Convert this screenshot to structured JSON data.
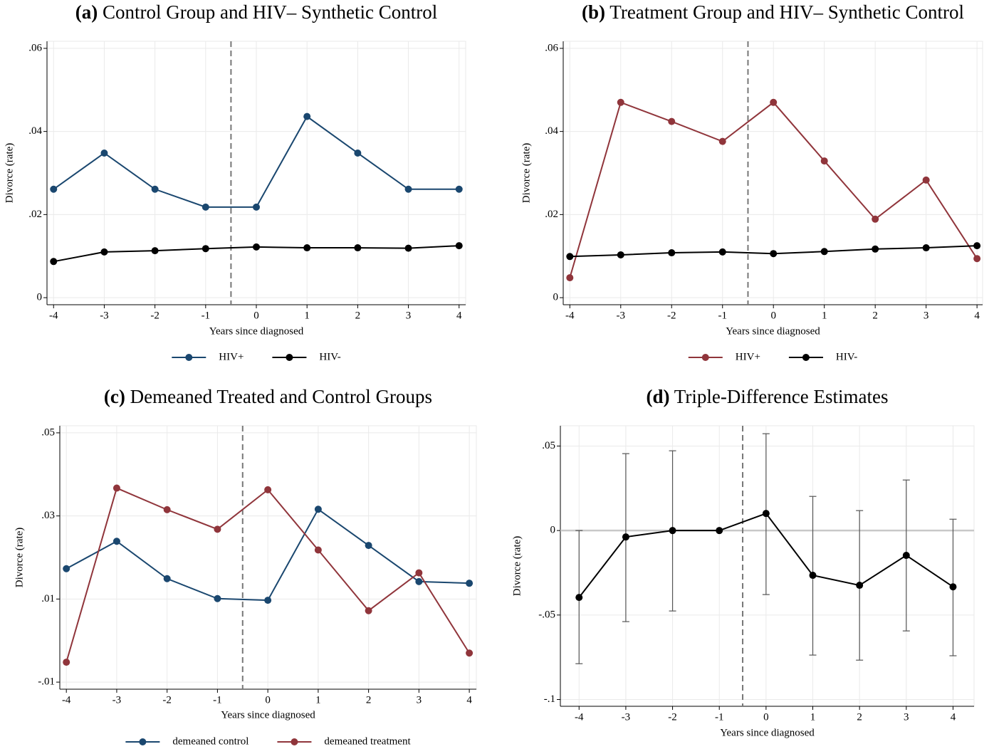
{
  "chart_data": [
    {
      "type": "line",
      "label": "(a)",
      "title": "Control Group and HIV– Synthetic Control",
      "xlabel": "Years since diagnosed",
      "ylabel": "Divorce (rate)",
      "x": [
        -4,
        -3,
        -2,
        -1,
        0,
        1,
        2,
        3,
        4
      ],
      "series": [
        {
          "name": "HIV+",
          "color": "#1a476f",
          "values": [
            0.0261,
            0.0348,
            0.0261,
            0.0218,
            0.0218,
            0.0436,
            0.0348,
            0.0261,
            0.0261
          ]
        },
        {
          "name": "HIV-",
          "color": "#000000",
          "values": [
            0.0087,
            0.011,
            0.0113,
            0.0118,
            0.0122,
            0.012,
            0.012,
            0.0119,
            0.0125
          ]
        }
      ],
      "xlim": [
        -4.13,
        4.13
      ],
      "xticks": [
        -4,
        -3,
        -2,
        -1,
        0,
        1,
        2,
        3,
        4
      ],
      "ylim": [
        -0.0017,
        0.0617
      ],
      "yticks": [
        0,
        {
          "value": 0.02,
          "label": ".02"
        },
        {
          "value": 0.04,
          "label": ".04"
        },
        {
          "value": 0.06,
          "label": ".06"
        }
      ],
      "vline": -0.5,
      "grid": true,
      "legend": "bottom"
    },
    {
      "type": "line",
      "label": "(b)",
      "title": "Treatment Group and HIV– Synthetic Control",
      "xlabel": "Years since diagnosed",
      "ylabel": "Divorce (rate)",
      "x": [
        -4,
        -3,
        -2,
        -1,
        0,
        1,
        2,
        3,
        4
      ],
      "series": [
        {
          "name": "HIV+",
          "color": "#90353b",
          "values": [
            0.0048,
            0.047,
            0.0424,
            0.0376,
            0.047,
            0.0329,
            0.0189,
            0.0283,
            0.0094
          ]
        },
        {
          "name": "HIV-",
          "color": "#000000",
          "values": [
            0.0099,
            0.0103,
            0.0108,
            0.011,
            0.0106,
            0.0111,
            0.0117,
            0.012,
            0.0125
          ]
        }
      ],
      "xlim": [
        -4.13,
        4.11
      ],
      "xticks": [
        -4,
        -3,
        -2,
        -1,
        0,
        1,
        2,
        3,
        4
      ],
      "ylim": [
        -0.0017,
        0.0617
      ],
      "yticks": [
        0,
        {
          "value": 0.02,
          "label": ".02"
        },
        {
          "value": 0.04,
          "label": ".04"
        },
        {
          "value": 0.06,
          "label": ".06"
        }
      ],
      "vline": -0.5,
      "grid": true,
      "legend": "bottom"
    },
    {
      "type": "line",
      "label": "(c)",
      "title": "Demeaned Treated and Control Groups",
      "xlabel": "Years since diagnosed",
      "ylabel": "Divorce (rate)",
      "x": [
        -4,
        -3,
        -2,
        -1,
        0,
        1,
        2,
        3,
        4
      ],
      "series": [
        {
          "name": "demeaned control",
          "color": "#1a476f",
          "values": [
            0.0173,
            0.0239,
            0.0149,
            0.0101,
            0.0097,
            0.0316,
            0.0229,
            0.0142,
            0.0138
          ]
        },
        {
          "name": "demeaned treatment",
          "color": "#90353b",
          "values": [
            -0.0052,
            0.0367,
            0.0315,
            0.0268,
            0.0363,
            0.0218,
            0.0072,
            0.0163,
            -0.003
          ]
        }
      ],
      "xlim": [
        -4.13,
        4.14
      ],
      "xticks": [
        -4,
        -3,
        -2,
        -1,
        0,
        1,
        2,
        3,
        4
      ],
      "ylim": [
        -0.0117,
        0.0517
      ],
      "yticks": [
        {
          "value": -0.01,
          "label": "-.01"
        },
        {
          "value": 0.01,
          "label": ".01"
        },
        {
          "value": 0.03,
          "label": ".03"
        },
        {
          "value": 0.05,
          "label": ".05"
        }
      ],
      "vline": -0.5,
      "grid": true,
      "legend": "bottom"
    },
    {
      "type": "line",
      "label": "(d)",
      "title": "Triple-Difference Estimates",
      "xlabel": "Years since diagnosed",
      "ylabel": "Divorce (rate)",
      "x": [
        -4,
        -3,
        -2,
        -1,
        0,
        1,
        2,
        3,
        4
      ],
      "series": [
        {
          "color": "#000000",
          "values": [
            -0.0396,
            -0.0038,
            0,
            0,
            0.0101,
            -0.0265,
            -0.0324,
            -0.0147,
            -0.0333
          ],
          "lower": [
            -0.0788,
            -0.0539,
            -0.0476,
            null,
            -0.0379,
            -0.0737,
            -0.0767,
            -0.0594,
            -0.0741
          ],
          "upper": [
            0,
            0.0455,
            0.0472,
            null,
            0.0573,
            0.0202,
            0.0118,
            0.0299,
            0.0067
          ]
        }
      ],
      "xlim": [
        -4.4,
        4.45
      ],
      "xticks": [
        -4,
        -3,
        -2,
        -1,
        0,
        1,
        2,
        3,
        4
      ],
      "ylim": [
        -0.104,
        0.062
      ],
      "yticks": [
        {
          "value": -0.1,
          "label": "-.1"
        },
        {
          "value": -0.05,
          "label": "-.05"
        },
        0,
        {
          "value": 0.05,
          "label": ".05"
        }
      ],
      "vline": -0.5,
      "hline": 0,
      "grid": true
    }
  ]
}
